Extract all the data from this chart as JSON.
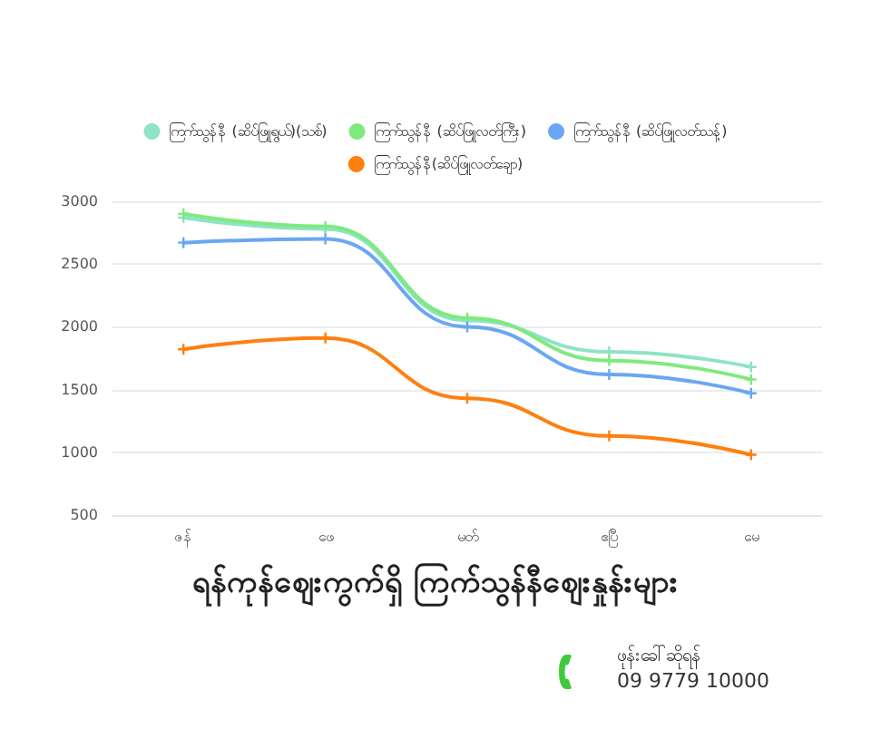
{
  "chart_data": {
    "type": "line",
    "title": "ရန်ကုန်ဈေးကွက်ရှိ ကြက်သွန်နီဈေးနှုန်းများ",
    "categories": [
      "ဇန်",
      "ဖေ",
      "မတ်",
      "ဧပြီ",
      "မေ"
    ],
    "series": [
      {
        "name": "ကြက်သွန်နီ (ဆိပ်ဖြူရွယ်)(သစ်)",
        "color": "#8ee3c8",
        "values": [
          2870,
          2780,
          2050,
          1800,
          1680
        ]
      },
      {
        "name": "ကြက်သွန်နီ (ဆိပ်ဖြူလတ်ကြီး)",
        "color": "#7eea7e",
        "values": [
          2900,
          2800,
          2070,
          1730,
          1580
        ]
      },
      {
        "name": "ကြက်သွန်နီ (ဆိပ်ဖြူလတ်သန့်)",
        "color": "#6aa6f4",
        "values": [
          2670,
          2700,
          2000,
          1620,
          1470
        ]
      },
      {
        "name": "ကြက်သွန်နီ(ဆိပ်ဖြူလတ်ချော)",
        "color": "#ff7f0e",
        "values": [
          1820,
          1910,
          1430,
          1130,
          980
        ]
      }
    ],
    "ylim": [
      500,
      3000
    ],
    "yticks": [
      500,
      1000,
      1500,
      2000,
      2500,
      3000
    ],
    "grid": "y",
    "legend": "top",
    "marker": "cross",
    "line_style": "solid",
    "annotations": [
      "ဖုန်းခေါ်ဆိုရန်",
      "09 9779 10000"
    ]
  }
}
